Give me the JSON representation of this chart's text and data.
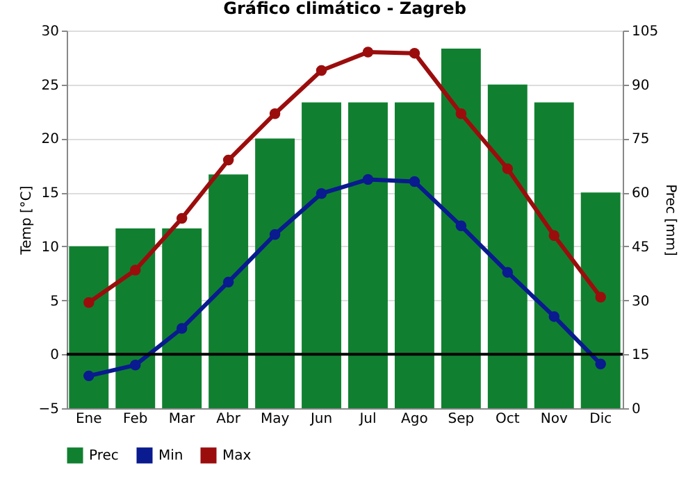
{
  "chart_data": {
    "type": "bar",
    "title": "Gráfico climático - Zagreb",
    "ylabel": "Temp [°C]",
    "y2label": "Prec [mm]",
    "categories": [
      "Ene",
      "Feb",
      "Mar",
      "Abr",
      "May",
      "Jun",
      "Jul",
      "Ago",
      "Sep",
      "Oct",
      "Nov",
      "Dic"
    ],
    "series": [
      {
        "name": "Prec",
        "axis": "y2",
        "color": "#108030",
        "values": [
          45,
          50,
          50,
          65,
          75,
          85,
          85,
          85,
          100,
          90,
          85,
          60
        ]
      },
      {
        "name": "Min",
        "type": "line",
        "color": "#0a1a8f",
        "values": [
          -2.0,
          -1.0,
          2.4,
          6.7,
          11.1,
          14.9,
          16.2,
          16.0,
          11.9,
          7.6,
          3.5,
          -0.9
        ]
      },
      {
        "name": "Max",
        "type": "line",
        "color": "#9b0d0d",
        "values": [
          4.8,
          7.8,
          12.6,
          18.0,
          22.3,
          26.3,
          28.0,
          27.9,
          22.3,
          17.2,
          11.0,
          5.3
        ]
      }
    ],
    "ylim": [
      -5,
      30
    ],
    "yticks": [
      -5,
      0,
      5,
      10,
      15,
      20,
      25,
      30
    ],
    "y2lim": [
      0,
      105
    ],
    "y2ticks": [
      0,
      15,
      30,
      45,
      60,
      75,
      90,
      105
    ],
    "ref_lines": [
      {
        "axis": "y",
        "value": 0,
        "color": "#000000"
      }
    ],
    "grid": "y",
    "legend": "bottom",
    "marker": "circle",
    "line_style": "solid"
  }
}
